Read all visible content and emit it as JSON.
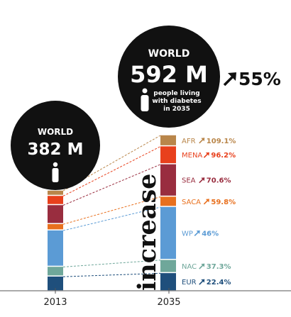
{
  "chart_data": {
    "type": "bar",
    "categories": [
      "2013",
      "2035"
    ],
    "series": [
      {
        "name": "EUR",
        "values": [
          56,
          69
        ],
        "color": "#1f4f7c",
        "increase": "22.4%"
      },
      {
        "name": "NAC",
        "values": [
          37,
          50
        ],
        "color": "#6fa79a",
        "increase": "37.3%"
      },
      {
        "name": "WP",
        "values": [
          138,
          201
        ],
        "color": "#5b9bd5",
        "increase": "46%"
      },
      {
        "name": "SACA",
        "values": [
          24,
          39
        ],
        "color": "#e8701e",
        "increase": "59.8%"
      },
      {
        "name": "SEA",
        "values": [
          72,
          123
        ],
        "color": "#992d3f",
        "increase": "70.6%"
      },
      {
        "name": "MENA",
        "values": [
          35,
          68
        ],
        "color": "#e8401c",
        "increase": "96.2%"
      },
      {
        "name": "AFR",
        "values": [
          20,
          42
        ],
        "color": "#b9864a",
        "increase": "109.1%"
      }
    ]
  },
  "bubble_2013": {
    "world": "WORLD",
    "value": "382 M"
  },
  "bubble_2035": {
    "world": "WORLD",
    "value": "592 M",
    "caption": [
      "people living",
      "with diabetes",
      "in 2035"
    ]
  },
  "total_increase": "55%",
  "increase_word": "increase",
  "colors": {
    "bubble": "#111111",
    "arrow": "#111111",
    "axis": "#555555"
  }
}
